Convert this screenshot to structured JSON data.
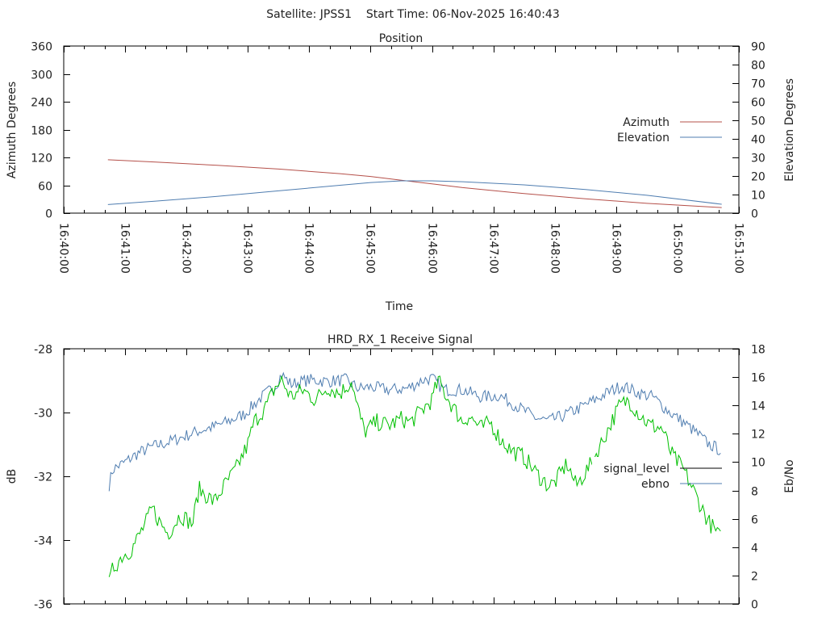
{
  "header": {
    "title": "Satellite: JPSS1    Start Time: 06-Nov-2025 16:40:43"
  },
  "colors": {
    "azimuth": "#b5504a",
    "elevation": "#4f7db0",
    "signal_level": "#00c000",
    "signal_level_legend": "#000000",
    "ebno": "#4f7db0",
    "axis": "#000000"
  },
  "chart_data": [
    {
      "type": "line",
      "title": "Position",
      "xlabel": "Time",
      "ylabel": "Azimuth Degrees",
      "y2label": "Elevation Degrees",
      "xlim_minutes": [
        0,
        11
      ],
      "x_origin": "16:40:00",
      "x_tick_labels": [
        "16:40:00",
        "16:41:00",
        "16:42:00",
        "16:43:00",
        "16:44:00",
        "16:45:00",
        "16:46:00",
        "16:47:00",
        "16:48:00",
        "16:49:00",
        "16:50:00",
        "16:51:00"
      ],
      "ylim": [
        0,
        360
      ],
      "y_ticks": [
        0,
        60,
        120,
        180,
        240,
        300,
        360
      ],
      "y2lim": [
        0,
        90
      ],
      "y2_ticks": [
        0,
        10,
        20,
        30,
        40,
        50,
        60,
        70,
        80,
        90
      ],
      "legend": "right",
      "series": [
        {
          "name": "Azimuth",
          "axis": "y",
          "x_minutes": [
            0.72,
            1.5,
            2.5,
            3.5,
            4.5,
            5.0,
            5.5,
            6.0,
            6.5,
            7.5,
            8.5,
            9.5,
            10.72
          ],
          "values": [
            115,
            110,
            103,
            95,
            85,
            79,
            71,
            63,
            55,
            42,
            31,
            21,
            12
          ]
        },
        {
          "name": "Elevation",
          "axis": "y2",
          "x_minutes": [
            0.72,
            1.5,
            2.5,
            3.5,
            4.5,
            5.0,
            5.5,
            6.0,
            6.5,
            7.5,
            8.5,
            9.5,
            10.72
          ],
          "values": [
            4.6,
            6.5,
            9.0,
            12.0,
            15.0,
            16.5,
            17.4,
            17.4,
            16.9,
            15.2,
            12.7,
            9.6,
            4.8
          ]
        }
      ]
    },
    {
      "type": "line",
      "title": "HRD_RX_1 Receive Signal",
      "xlabel": "",
      "ylabel": "dB",
      "y2label": "Eb/No",
      "xlim_minutes": [
        0,
        11
      ],
      "ylim": [
        -36,
        -28
      ],
      "y_ticks": [
        -36,
        -34,
        -32,
        -30,
        -28
      ],
      "y2lim": [
        0,
        18
      ],
      "y2_ticks": [
        0,
        2,
        4,
        6,
        8,
        10,
        12,
        14,
        16,
        18
      ],
      "legend": "right",
      "series": [
        {
          "name": "signal_level",
          "axis": "y",
          "x_minutes": [
            0.74,
            0.8,
            0.95,
            1.1,
            1.3,
            1.45,
            1.55,
            1.7,
            1.9,
            2.1,
            2.2,
            2.45,
            2.65,
            2.8,
            3.0,
            3.1,
            3.3,
            3.45,
            3.55,
            3.7,
            3.9,
            4.1,
            4.3,
            4.5,
            4.7,
            4.75,
            4.9,
            5.1,
            5.3,
            5.5,
            5.65,
            5.8,
            6.0,
            6.1,
            6.3,
            6.5,
            6.6,
            6.8,
            6.95,
            7.1,
            7.3,
            7.5,
            7.7,
            7.9,
            8.0,
            8.2,
            8.35,
            8.6,
            8.85,
            9.05,
            9.2,
            9.4,
            9.55,
            9.75,
            9.9,
            10.1,
            10.3,
            10.5,
            10.72
          ],
          "values": [
            -35.4,
            -34.9,
            -34.5,
            -34.3,
            -33.6,
            -33.0,
            -33.4,
            -33.8,
            -33.2,
            -33.5,
            -32.4,
            -32.8,
            -32.2,
            -31.8,
            -31.0,
            -30.3,
            -29.8,
            -29.2,
            -29.0,
            -29.5,
            -29.3,
            -29.6,
            -29.2,
            -29.4,
            -29.0,
            -29.6,
            -30.6,
            -30.3,
            -30.4,
            -30.2,
            -30.3,
            -30.0,
            -29.6,
            -29.0,
            -29.7,
            -30.3,
            -30.1,
            -30.5,
            -30.3,
            -30.8,
            -31.2,
            -31.4,
            -31.9,
            -32.3,
            -32.2,
            -31.6,
            -32.3,
            -31.6,
            -30.6,
            -29.8,
            -29.6,
            -30.1,
            -30.4,
            -30.5,
            -31.3,
            -31.8,
            -32.6,
            -33.4,
            -34.0
          ]
        },
        {
          "name": "ebno",
          "axis": "y2",
          "x_minutes": [
            0.74,
            0.8,
            1.0,
            1.2,
            1.45,
            1.7,
            1.95,
            2.2,
            2.45,
            2.7,
            2.95,
            3.2,
            3.45,
            3.55,
            3.7,
            4.0,
            4.3,
            4.6,
            4.8,
            5.0,
            5.3,
            5.6,
            5.85,
            6.0,
            6.2,
            6.5,
            6.8,
            7.1,
            7.4,
            7.7,
            7.9,
            8.1,
            8.4,
            8.7,
            8.9,
            9.1,
            9.35,
            9.6,
            9.85,
            10.1,
            10.3,
            10.5,
            10.72
          ],
          "values": [
            8.4,
            9.5,
            10.0,
            10.6,
            11.1,
            11.4,
            11.8,
            12.2,
            12.5,
            12.9,
            13.4,
            14.5,
            15.4,
            16.2,
            15.5,
            15.8,
            15.7,
            15.8,
            15.2,
            15.3,
            15.1,
            15.2,
            15.8,
            15.9,
            15.1,
            15.1,
            14.6,
            14.7,
            13.9,
            13.1,
            12.9,
            13.2,
            13.8,
            14.5,
            15.0,
            15.4,
            14.9,
            14.6,
            13.6,
            12.8,
            12.1,
            11.3,
            10.8
          ]
        }
      ]
    }
  ]
}
